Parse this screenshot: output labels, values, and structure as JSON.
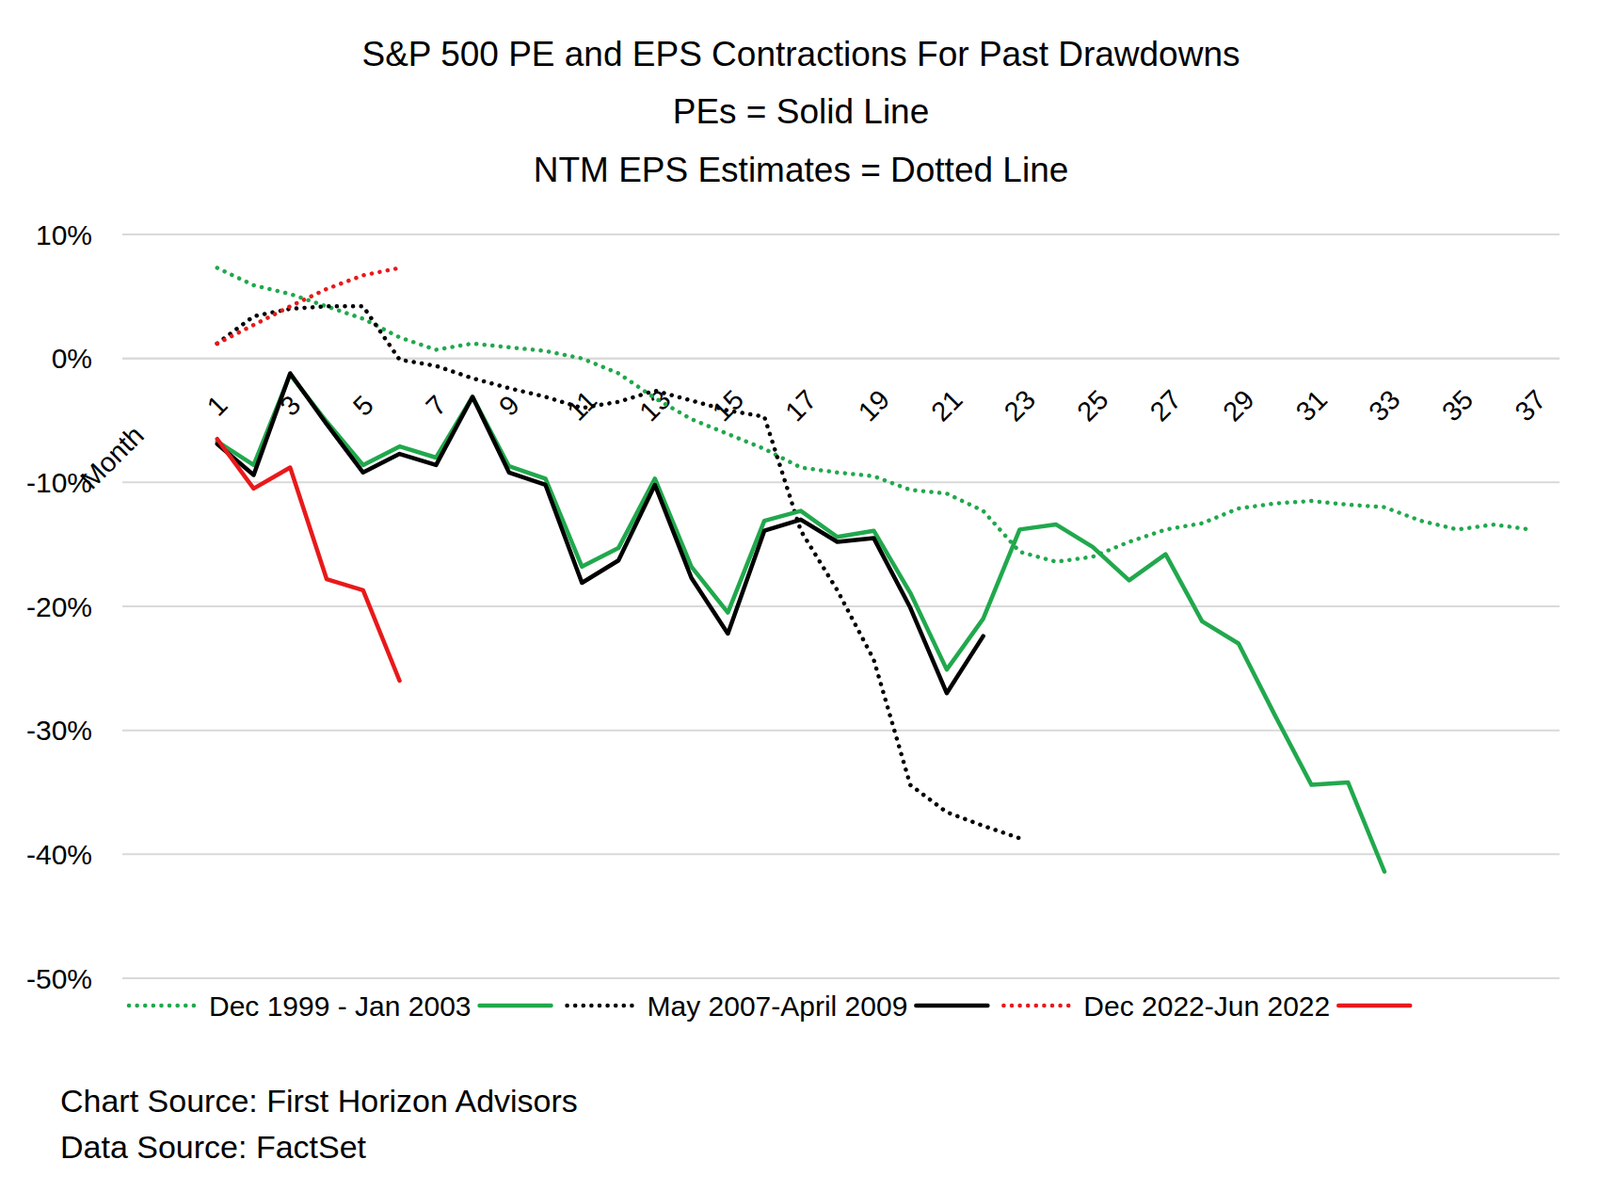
{
  "chart_data": {
    "type": "line",
    "title": "S&P 500 PE and EPS Contractions For Past Drawdowns",
    "subtitle": [
      "PEs = Solid Line",
      "NTM EPS Estimates = Dotted Line"
    ],
    "x_label": "Month",
    "annotations": [
      "Chart Source: First Horizon Advisors",
      "Data Source: FactSet"
    ],
    "x": [
      1,
      2,
      3,
      4,
      5,
      6,
      7,
      8,
      9,
      10,
      11,
      12,
      13,
      14,
      15,
      16,
      17,
      18,
      19,
      20,
      21,
      22,
      23,
      24,
      25,
      26,
      27,
      28,
      29,
      30,
      31,
      32,
      33,
      34,
      35,
      36,
      37
    ],
    "xlim": [
      -1.6,
      37.8
    ],
    "xticks": [
      1,
      3,
      5,
      7,
      9,
      11,
      13,
      15,
      17,
      19,
      21,
      23,
      25,
      27,
      29,
      31,
      33,
      35,
      37
    ],
    "ylim": [
      -50,
      10
    ],
    "yticks": [
      {
        "value": -50,
        "label": "-50%"
      },
      {
        "value": -40,
        "label": "-40%"
      },
      {
        "value": -30,
        "label": "-30%"
      },
      {
        "value": -20,
        "label": "-20%"
      },
      {
        "value": -10,
        "label": "-10%"
      },
      {
        "value": 0,
        "label": "0%"
      },
      {
        "value": 10,
        "label": "10%"
      }
    ],
    "grid": true,
    "legend": "bottom",
    "series": [
      {
        "name": "Dec 1999 - Jan 2003",
        "color": "#21a84d",
        "line_style": "dotted",
        "values": [
          7.3,
          5.9,
          5.2,
          4.2,
          3.2,
          1.7,
          0.7,
          1.2,
          0.9,
          0.6,
          0,
          -1.2,
          -3.2,
          -4.9,
          -6.1,
          -7.3,
          -8.8,
          -9.2,
          -9.5,
          -10.6,
          -10.9,
          -12.3,
          -15.6,
          -16.4,
          -16.0,
          -14.8,
          -13.8,
          -13.3,
          -12.1,
          -11.7,
          -11.5,
          -11.8,
          -12.0,
          -13.1,
          -13.8,
          -13.4,
          -13.8
        ]
      },
      {
        "name": "Dec 1999 - Jan 2003",
        "color": "#21a84d",
        "line_style": "solid",
        "values": [
          -6.7,
          -8.6,
          -1.3,
          -5.1,
          -8.6,
          -7.1,
          -8.0,
          -3.1,
          -8.7,
          -9.7,
          -16.8,
          -15.3,
          -9.7,
          -16.8,
          -20.5,
          -13.1,
          -12.3,
          -14.4,
          -13.9,
          -18.9,
          -25.1,
          -21.0,
          -13.8,
          -13.4,
          -15.2,
          -17.9,
          -15.8,
          -21.2,
          -23.0,
          -28.8,
          -34.4,
          -34.2,
          -41.4,
          null,
          null,
          null,
          null
        ]
      },
      {
        "name": "May 2007-April 2009",
        "color": "#000000",
        "line_style": "dotted",
        "values": [
          1.2,
          3.4,
          4.0,
          4.2,
          4.2,
          -0.1,
          -0.6,
          -1.6,
          -2.4,
          -3.1,
          -4.0,
          -3.5,
          -2.6,
          -3.4,
          -4.2,
          -4.7,
          -13.9,
          -18.7,
          -24.3,
          -34.4,
          -36.6,
          -37.7,
          -38.7,
          null,
          null,
          null,
          null,
          null,
          null,
          null,
          null,
          null,
          null,
          null,
          null,
          null,
          null
        ]
      },
      {
        "name": "May 2007-April 2009",
        "color": "#000000",
        "line_style": "solid",
        "values": [
          -6.9,
          -9.4,
          -1.2,
          -5.3,
          -9.2,
          -7.7,
          -8.6,
          -3.1,
          -9.2,
          -10.2,
          -18.1,
          -16.3,
          -10.2,
          -17.7,
          -22.2,
          -13.9,
          -13.0,
          -14.8,
          -14.5,
          -20.1,
          -27.0,
          -22.4,
          null,
          null,
          null,
          null,
          null,
          null,
          null,
          null,
          null,
          null,
          null,
          null,
          null,
          null,
          null
        ]
      },
      {
        "name": "Dec 2022-Jun 2022",
        "color": "#e8191b",
        "line_style": "dotted",
        "values": [
          1.2,
          2.7,
          4.2,
          5.6,
          6.7,
          7.3,
          null,
          null,
          null,
          null,
          null,
          null,
          null,
          null,
          null,
          null,
          null,
          null,
          null,
          null,
          null,
          null,
          null,
          null,
          null,
          null,
          null,
          null,
          null,
          null,
          null,
          null,
          null,
          null,
          null,
          null,
          null
        ]
      },
      {
        "name": "Dec 2022-Jun 2022",
        "color": "#e8191b",
        "line_style": "solid",
        "values": [
          -6.5,
          -10.5,
          -8.8,
          -17.8,
          -18.7,
          -26.0,
          null,
          null,
          null,
          null,
          null,
          null,
          null,
          null,
          null,
          null,
          null,
          null,
          null,
          null,
          null,
          null,
          null,
          null,
          null,
          null,
          null,
          null,
          null,
          null,
          null,
          null,
          null,
          null,
          null,
          null,
          null
        ]
      }
    ]
  }
}
